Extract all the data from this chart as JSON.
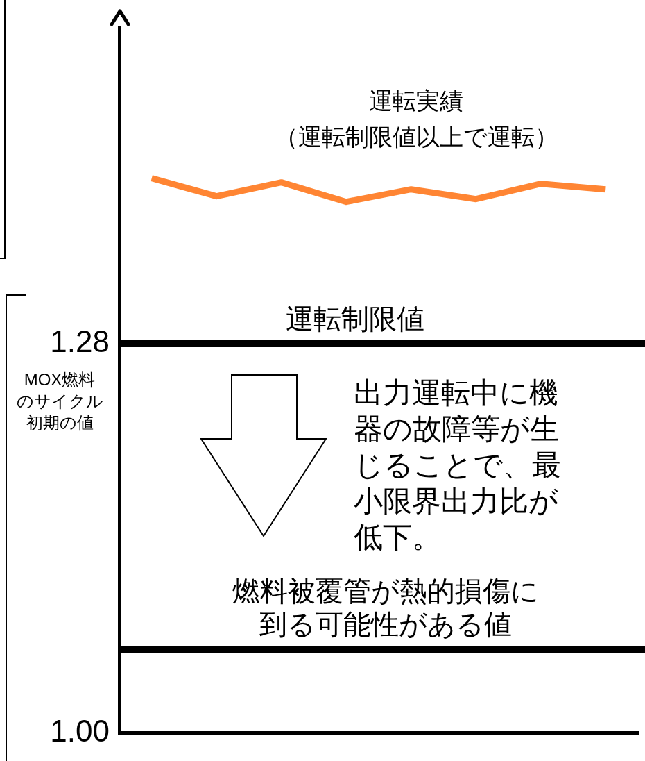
{
  "chart_data": {
    "type": "line",
    "categories": [
      null,
      null,
      null,
      null,
      null,
      null,
      null,
      null
    ],
    "series": [
      {
        "color": "#ff8533",
        "values": [
          1.399,
          1.386,
          1.396,
          1.382,
          1.391,
          1.384,
          1.395,
          1.391
        ]
      }
    ],
    "ylim": [
      1.0,
      1.507
    ],
    "yticks": [
      {
        "value": 1.0,
        "label": "1.00"
      },
      {
        "value": 1.28,
        "label": "1.28"
      }
    ],
    "tick_labels": "y",
    "grid": false,
    "legend": false,
    "marker": "none",
    "line_style": "solid",
    "ref_lines": [
      {
        "axis": "y",
        "value": 1.28,
        "label": "運転制限値"
      },
      {
        "axis": "y",
        "value": 1.06,
        "label": "燃料被覆管が熱的損傷に到る可能性がある値"
      }
    ],
    "annotations": [
      "運転実績（運転制限値以上で運転）",
      "出力運転中に機器の故障等が生じることで、最小限界出力比が低下。",
      "MOX燃料のサイクル初期の値"
    ]
  }
}
